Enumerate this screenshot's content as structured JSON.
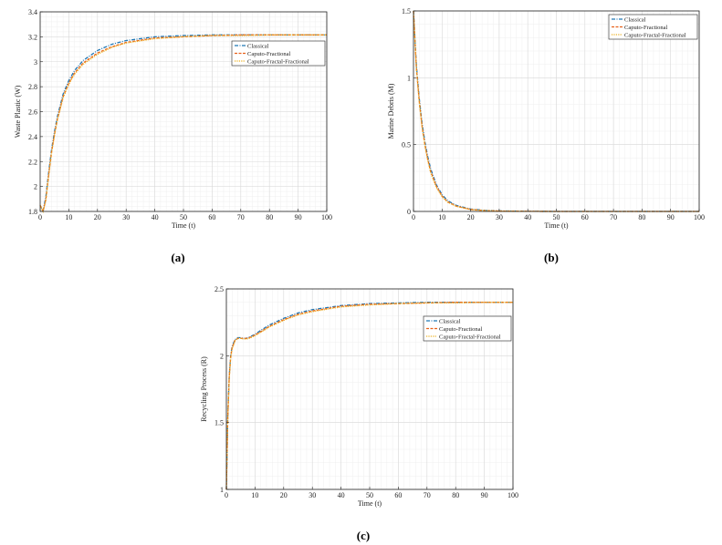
{
  "figure": {
    "captions": [
      "(a)",
      "(b)",
      "(c)"
    ]
  },
  "chart_data": [
    {
      "type": "line",
      "xlabel": "Time (t)",
      "ylabel": "Waste Plastic (W)",
      "xlim": [
        0,
        100
      ],
      "ylim": [
        1.8,
        3.4
      ],
      "xticks": [
        0,
        10,
        20,
        30,
        40,
        50,
        60,
        70,
        80,
        90,
        100
      ],
      "yticks": [
        1.8,
        2,
        2.2,
        2.4,
        2.6,
        2.8,
        3,
        3.2,
        3.4
      ],
      "grid": true,
      "legend_position": "top-right",
      "x": [
        0,
        1,
        2,
        3,
        4,
        5,
        6,
        8,
        10,
        12,
        15,
        20,
        25,
        30,
        40,
        50,
        60,
        70,
        80,
        90,
        100
      ],
      "series": [
        {
          "name": "Classical",
          "color": "#1f77b4",
          "style": "dashdot",
          "values": [
            1.85,
            1.8,
            1.92,
            2.12,
            2.3,
            2.44,
            2.56,
            2.74,
            2.85,
            2.93,
            3.01,
            3.09,
            3.14,
            3.17,
            3.2,
            3.21,
            3.215,
            3.215,
            3.215,
            3.215,
            3.215
          ]
        },
        {
          "name": "Caputo-Fractional",
          "color": "#e8611a",
          "style": "dashed",
          "values": [
            1.85,
            1.8,
            1.9,
            2.1,
            2.28,
            2.42,
            2.54,
            2.72,
            2.83,
            2.91,
            2.99,
            3.07,
            3.12,
            3.155,
            3.19,
            3.2,
            3.21,
            3.215,
            3.215,
            3.215,
            3.215
          ]
        },
        {
          "name": "Caputo-Fractal-Fractional",
          "color": "#edb120",
          "style": "dotted",
          "values": [
            1.85,
            1.8,
            1.89,
            2.09,
            2.27,
            2.41,
            2.53,
            2.71,
            2.82,
            2.9,
            2.98,
            3.06,
            3.115,
            3.15,
            3.185,
            3.2,
            3.21,
            3.21,
            3.215,
            3.215,
            3.215
          ]
        }
      ]
    },
    {
      "type": "line",
      "xlabel": "Time (t)",
      "ylabel": "Marine Debris (M)",
      "xlim": [
        0,
        100
      ],
      "ylim": [
        0,
        1.5
      ],
      "xticks": [
        0,
        10,
        20,
        30,
        40,
        50,
        60,
        70,
        80,
        90,
        100
      ],
      "yticks": [
        0,
        0.5,
        1,
        1.5
      ],
      "grid": true,
      "legend_position": "top-right",
      "x": [
        0,
        1,
        2,
        3,
        4,
        5,
        6,
        8,
        10,
        12,
        15,
        20,
        25,
        30,
        40,
        50,
        60,
        70,
        80,
        90,
        100
      ],
      "series": [
        {
          "name": "Classical",
          "color": "#1f77b4",
          "style": "dashdot",
          "values": [
            1.5,
            1.1,
            0.85,
            0.66,
            0.52,
            0.41,
            0.32,
            0.2,
            0.125,
            0.08,
            0.045,
            0.018,
            0.008,
            0.004,
            0.001,
            0,
            0,
            0,
            0,
            0,
            0
          ]
        },
        {
          "name": "Caputo-Fractional",
          "color": "#e8611a",
          "style": "dashed",
          "values": [
            1.5,
            1.08,
            0.83,
            0.64,
            0.5,
            0.39,
            0.3,
            0.19,
            0.115,
            0.072,
            0.04,
            0.015,
            0.006,
            0.003,
            0.001,
            0,
            0,
            0,
            0,
            0,
            0
          ]
        },
        {
          "name": "Caputo-Fractal-Fractional",
          "color": "#edb120",
          "style": "dotted",
          "values": [
            1.5,
            1.07,
            0.82,
            0.63,
            0.49,
            0.38,
            0.29,
            0.18,
            0.11,
            0.068,
            0.038,
            0.014,
            0.006,
            0.003,
            0.001,
            0,
            0,
            0,
            0,
            0,
            0
          ]
        }
      ]
    },
    {
      "type": "line",
      "xlabel": "Time (t)",
      "ylabel": "Recycling Process (R)",
      "xlim": [
        0,
        100
      ],
      "ylim": [
        1,
        2.5
      ],
      "xticks": [
        0,
        10,
        20,
        30,
        40,
        50,
        60,
        70,
        80,
        90,
        100
      ],
      "yticks": [
        1,
        1.5,
        2,
        2.5
      ],
      "grid": true,
      "legend_position": "top-right",
      "x": [
        0,
        0.5,
        1,
        1.5,
        2,
        3,
        4,
        5,
        6,
        7,
        8,
        10,
        12,
        15,
        20,
        25,
        30,
        40,
        50,
        60,
        70,
        80,
        90,
        100
      ],
      "series": [
        {
          "name": "Classical",
          "color": "#1f77b4",
          "style": "dashdot",
          "values": [
            1.0,
            1.55,
            1.85,
            2.0,
            2.07,
            2.12,
            2.135,
            2.135,
            2.13,
            2.13,
            2.14,
            2.16,
            2.19,
            2.23,
            2.28,
            2.32,
            2.345,
            2.375,
            2.39,
            2.395,
            2.4,
            2.4,
            2.4,
            2.4
          ]
        },
        {
          "name": "Caputo-Fractional",
          "color": "#e8611a",
          "style": "dashed",
          "values": [
            1.0,
            1.54,
            1.84,
            1.99,
            2.06,
            2.115,
            2.13,
            2.13,
            2.13,
            2.13,
            2.135,
            2.155,
            2.18,
            2.22,
            2.27,
            2.31,
            2.335,
            2.37,
            2.385,
            2.39,
            2.395,
            2.4,
            2.4,
            2.4
          ]
        },
        {
          "name": "Caputo-Fractal-Fractional",
          "color": "#edb120",
          "style": "dotted",
          "values": [
            1.0,
            1.53,
            1.83,
            1.98,
            2.05,
            2.11,
            2.13,
            2.13,
            2.125,
            2.125,
            2.13,
            2.15,
            2.175,
            2.215,
            2.265,
            2.305,
            2.33,
            2.365,
            2.38,
            2.39,
            2.395,
            2.395,
            2.4,
            2.4
          ]
        }
      ]
    }
  ]
}
